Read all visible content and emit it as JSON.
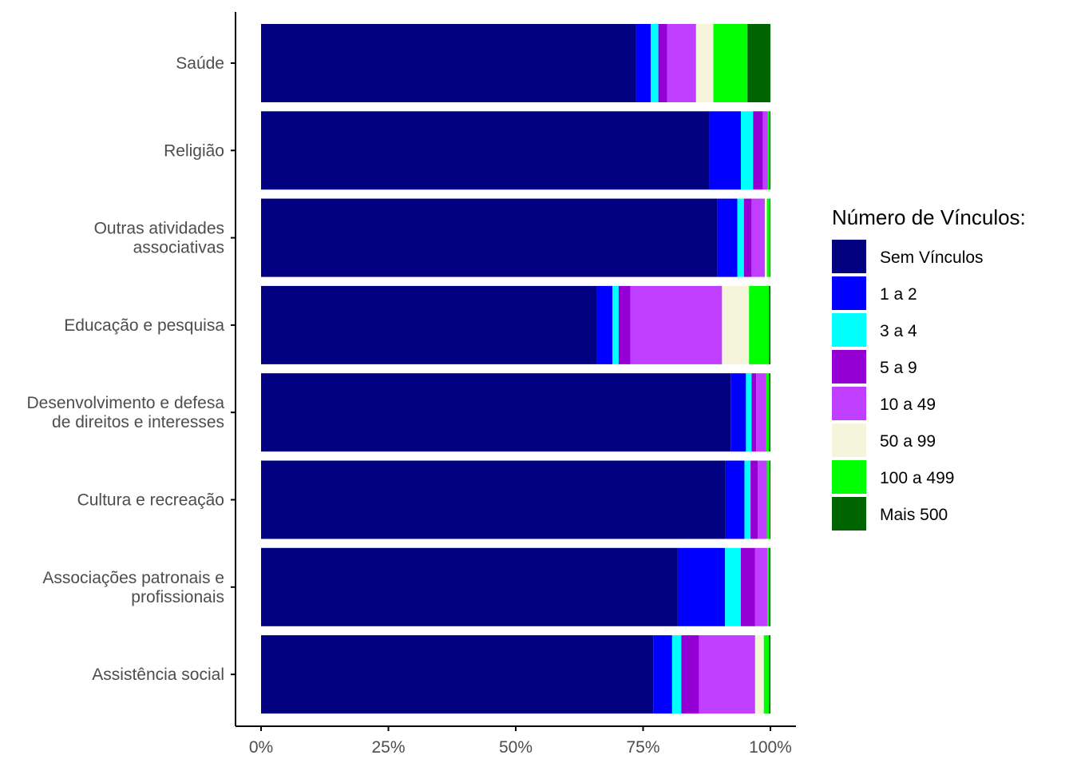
{
  "chart_data": {
    "type": "bar",
    "orientation": "horizontal",
    "stacked": "percent",
    "categories": [
      "Saúde",
      "Religião",
      "Outras atividades\nassociativas",
      "Educação e pesquisa",
      "Desenvolvimento e defesa\nde direitos e interesses",
      "Cultura e recreação",
      "Associações patronais e\nprofissionais",
      "Assistência social"
    ],
    "series": [
      {
        "name": "Sem Vínculos",
        "color": "#000080",
        "values": [
          73.6,
          88.0,
          89.6,
          65.9,
          92.2,
          91.2,
          81.8,
          77.0
        ]
      },
      {
        "name": "1 a 2",
        "color": "#0000FF",
        "values": [
          2.9,
          6.2,
          3.9,
          3.1,
          3.0,
          3.7,
          9.3,
          3.7
        ]
      },
      {
        "name": "3 a 4",
        "color": "#00FFFF",
        "values": [
          1.5,
          2.4,
          1.3,
          1.2,
          1.1,
          1.2,
          3.1,
          1.8
        ]
      },
      {
        "name": "5 a 9",
        "color": "#9400D3",
        "values": [
          1.7,
          1.9,
          1.5,
          2.3,
          0.9,
          1.4,
          2.8,
          3.5
        ]
      },
      {
        "name": "10 a 49",
        "color": "#BF3EFF",
        "values": [
          5.7,
          1.0,
          2.6,
          18.0,
          2.0,
          1.8,
          2.4,
          11.0
        ]
      },
      {
        "name": "50 a 99",
        "color": "#F5F5DC",
        "values": [
          3.4,
          0.0,
          0.4,
          5.3,
          0.0,
          0.0,
          0.0,
          1.7
        ]
      },
      {
        "name": "100 a 499",
        "color": "#00FF00",
        "values": [
          6.7,
          0.3,
          0.6,
          3.9,
          0.5,
          0.5,
          0.3,
          1.0
        ]
      },
      {
        "name": "Mais 500",
        "color": "#006400",
        "values": [
          4.5,
          0.2,
          0.1,
          0.3,
          0.3,
          0.2,
          0.3,
          0.3
        ]
      }
    ],
    "x_ticks": [
      "0%",
      "25%",
      "50%",
      "75%",
      "100%"
    ],
    "xlim": [
      0,
      100
    ],
    "title": "",
    "xlabel": "",
    "ylabel": "",
    "legend": {
      "title": "Número de Vínculos:",
      "position": "right"
    }
  }
}
